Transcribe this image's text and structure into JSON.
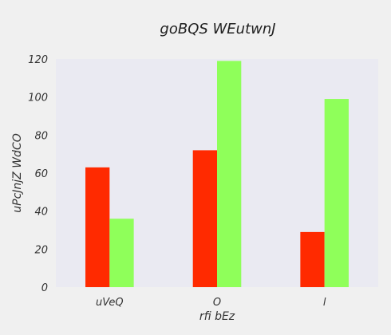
{
  "chart_data": {
    "type": "bar",
    "title": "goBQS WEutwnJ",
    "xlabel": "rfi bEz",
    "ylabel": "uPcJnjZ WdCO",
    "categories": [
      "uVeQ",
      "O",
      "l"
    ],
    "series": [
      {
        "color": "#ff2a00",
        "values": [
          63,
          72,
          29
        ]
      },
      {
        "color": "#8fff5a",
        "values": [
          36,
          119,
          99
        ]
      }
    ],
    "ylim": [
      0,
      120
    ],
    "yticks": [
      0,
      20,
      40,
      60,
      80,
      100,
      120
    ],
    "grid": false,
    "legend": "none",
    "plot_background": "#eaeaf2"
  }
}
